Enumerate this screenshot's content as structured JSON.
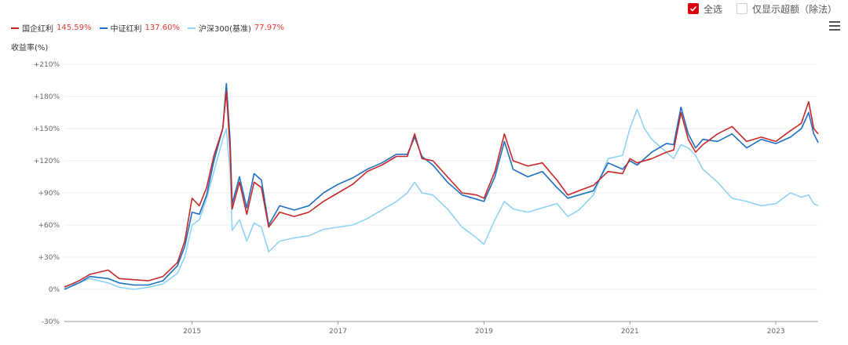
{
  "controls": {
    "select_all_label": "全选",
    "select_all_checked": true,
    "excess_label": "仅显示超额（除法）",
    "excess_checked": false,
    "menu_icon": "hamburger-menu-icon",
    "check_icon": "check-icon"
  },
  "chart_data": {
    "type": "line",
    "ylabel": "收益率(%)",
    "ylim": [
      -30,
      210
    ],
    "xlim": [
      2013.25,
      2023.58
    ],
    "y_ticks": [
      -30,
      0,
      30,
      60,
      90,
      120,
      150,
      180,
      210
    ],
    "y_tick_labels": [
      "-30%",
      "0%",
      "+30%",
      "+60%",
      "+90%",
      "+120%",
      "+150%",
      "+180%",
      "+210%"
    ],
    "x_ticks": [
      2015,
      2017,
      2019,
      2021,
      2023
    ],
    "x_tick_labels": [
      "2015",
      "2017",
      "2019",
      "2021",
      "2023"
    ],
    "grid": "horizontal",
    "legend_position": "top-left",
    "series": [
      {
        "name": "国企红利",
        "final_label": "145.59%",
        "color": "#c62828",
        "points": [
          [
            2013.25,
            2
          ],
          [
            2013.45,
            8
          ],
          [
            2013.6,
            14
          ],
          [
            2013.85,
            18
          ],
          [
            2014.0,
            10
          ],
          [
            2014.2,
            9
          ],
          [
            2014.4,
            8
          ],
          [
            2014.6,
            12
          ],
          [
            2014.8,
            25
          ],
          [
            2014.9,
            45
          ],
          [
            2015.0,
            85
          ],
          [
            2015.1,
            78
          ],
          [
            2015.2,
            95
          ],
          [
            2015.3,
            125
          ],
          [
            2015.42,
            150
          ],
          [
            2015.47,
            185
          ],
          [
            2015.52,
            130
          ],
          [
            2015.55,
            75
          ],
          [
            2015.65,
            100
          ],
          [
            2015.75,
            70
          ],
          [
            2015.85,
            100
          ],
          [
            2015.95,
            95
          ],
          [
            2016.05,
            58
          ],
          [
            2016.2,
            72
          ],
          [
            2016.4,
            68
          ],
          [
            2016.6,
            72
          ],
          [
            2016.8,
            82
          ],
          [
            2017.0,
            90
          ],
          [
            2017.2,
            98
          ],
          [
            2017.4,
            110
          ],
          [
            2017.6,
            116
          ],
          [
            2017.8,
            124
          ],
          [
            2017.95,
            124
          ],
          [
            2018.05,
            145
          ],
          [
            2018.15,
            122
          ],
          [
            2018.3,
            120
          ],
          [
            2018.5,
            105
          ],
          [
            2018.7,
            90
          ],
          [
            2018.9,
            88
          ],
          [
            2019.0,
            85
          ],
          [
            2019.15,
            110
          ],
          [
            2019.28,
            145
          ],
          [
            2019.4,
            120
          ],
          [
            2019.6,
            115
          ],
          [
            2019.8,
            118
          ],
          [
            2020.0,
            102
          ],
          [
            2020.15,
            88
          ],
          [
            2020.3,
            92
          ],
          [
            2020.5,
            97
          ],
          [
            2020.7,
            110
          ],
          [
            2020.9,
            108
          ],
          [
            2021.0,
            122
          ],
          [
            2021.1,
            118
          ],
          [
            2021.3,
            122
          ],
          [
            2021.5,
            128
          ],
          [
            2021.6,
            130
          ],
          [
            2021.7,
            165
          ],
          [
            2021.8,
            140
          ],
          [
            2021.9,
            128
          ],
          [
            2022.0,
            135
          ],
          [
            2022.2,
            145
          ],
          [
            2022.4,
            152
          ],
          [
            2022.6,
            138
          ],
          [
            2022.8,
            142
          ],
          [
            2023.0,
            138
          ],
          [
            2023.2,
            148
          ],
          [
            2023.35,
            155
          ],
          [
            2023.45,
            175
          ],
          [
            2023.52,
            150
          ],
          [
            2023.58,
            145
          ]
        ]
      },
      {
        "name": "中证红利",
        "final_label": "137.60%",
        "color": "#1e6fc2",
        "points": [
          [
            2013.25,
            0
          ],
          [
            2013.45,
            6
          ],
          [
            2013.6,
            12
          ],
          [
            2013.85,
            10
          ],
          [
            2014.0,
            6
          ],
          [
            2014.2,
            4
          ],
          [
            2014.4,
            4
          ],
          [
            2014.6,
            8
          ],
          [
            2014.8,
            22
          ],
          [
            2014.9,
            40
          ],
          [
            2015.0,
            72
          ],
          [
            2015.1,
            70
          ],
          [
            2015.2,
            88
          ],
          [
            2015.3,
            120
          ],
          [
            2015.42,
            150
          ],
          [
            2015.47,
            192
          ],
          [
            2015.52,
            140
          ],
          [
            2015.55,
            80
          ],
          [
            2015.65,
            105
          ],
          [
            2015.75,
            76
          ],
          [
            2015.85,
            108
          ],
          [
            2015.95,
            102
          ],
          [
            2016.05,
            60
          ],
          [
            2016.2,
            78
          ],
          [
            2016.4,
            74
          ],
          [
            2016.6,
            78
          ],
          [
            2016.8,
            90
          ],
          [
            2017.0,
            98
          ],
          [
            2017.2,
            104
          ],
          [
            2017.4,
            112
          ],
          [
            2017.6,
            118
          ],
          [
            2017.8,
            126
          ],
          [
            2017.95,
            126
          ],
          [
            2018.05,
            142
          ],
          [
            2018.15,
            124
          ],
          [
            2018.3,
            116
          ],
          [
            2018.5,
            100
          ],
          [
            2018.7,
            88
          ],
          [
            2018.9,
            84
          ],
          [
            2019.0,
            82
          ],
          [
            2019.15,
            105
          ],
          [
            2019.28,
            138
          ],
          [
            2019.4,
            112
          ],
          [
            2019.6,
            105
          ],
          [
            2019.8,
            110
          ],
          [
            2020.0,
            95
          ],
          [
            2020.15,
            85
          ],
          [
            2020.3,
            88
          ],
          [
            2020.5,
            92
          ],
          [
            2020.7,
            118
          ],
          [
            2020.9,
            112
          ],
          [
            2021.0,
            120
          ],
          [
            2021.1,
            116
          ],
          [
            2021.3,
            128
          ],
          [
            2021.5,
            136
          ],
          [
            2021.6,
            135
          ],
          [
            2021.7,
            170
          ],
          [
            2021.8,
            145
          ],
          [
            2021.9,
            132
          ],
          [
            2022.0,
            140
          ],
          [
            2022.2,
            138
          ],
          [
            2022.4,
            145
          ],
          [
            2022.6,
            132
          ],
          [
            2022.8,
            140
          ],
          [
            2023.0,
            136
          ],
          [
            2023.2,
            142
          ],
          [
            2023.35,
            150
          ],
          [
            2023.45,
            165
          ],
          [
            2023.52,
            145
          ],
          [
            2023.58,
            137
          ]
        ]
      },
      {
        "name": "沪深300(基准)",
        "final_label": "77.97%",
        "color": "#8fd3f4",
        "points": [
          [
            2013.25,
            3
          ],
          [
            2013.45,
            6
          ],
          [
            2013.6,
            10
          ],
          [
            2013.85,
            6
          ],
          [
            2014.0,
            2
          ],
          [
            2014.2,
            0
          ],
          [
            2014.4,
            2
          ],
          [
            2014.6,
            5
          ],
          [
            2014.8,
            15
          ],
          [
            2014.9,
            30
          ],
          [
            2015.0,
            60
          ],
          [
            2015.1,
            65
          ],
          [
            2015.2,
            85
          ],
          [
            2015.3,
            110
          ],
          [
            2015.42,
            140
          ],
          [
            2015.47,
            150
          ],
          [
            2015.52,
            110
          ],
          [
            2015.55,
            55
          ],
          [
            2015.65,
            65
          ],
          [
            2015.75,
            45
          ],
          [
            2015.85,
            62
          ],
          [
            2015.95,
            58
          ],
          [
            2016.05,
            35
          ],
          [
            2016.2,
            45
          ],
          [
            2016.4,
            48
          ],
          [
            2016.6,
            50
          ],
          [
            2016.8,
            56
          ],
          [
            2017.0,
            58
          ],
          [
            2017.2,
            60
          ],
          [
            2017.4,
            66
          ],
          [
            2017.6,
            74
          ],
          [
            2017.8,
            82
          ],
          [
            2017.95,
            90
          ],
          [
            2018.05,
            100
          ],
          [
            2018.15,
            90
          ],
          [
            2018.3,
            88
          ],
          [
            2018.5,
            75
          ],
          [
            2018.7,
            58
          ],
          [
            2018.9,
            48
          ],
          [
            2019.0,
            42
          ],
          [
            2019.15,
            65
          ],
          [
            2019.28,
            82
          ],
          [
            2019.4,
            75
          ],
          [
            2019.6,
            72
          ],
          [
            2019.8,
            76
          ],
          [
            2020.0,
            80
          ],
          [
            2020.15,
            68
          ],
          [
            2020.3,
            74
          ],
          [
            2020.5,
            88
          ],
          [
            2020.7,
            122
          ],
          [
            2020.9,
            125
          ],
          [
            2021.0,
            150
          ],
          [
            2021.1,
            168
          ],
          [
            2021.2,
            150
          ],
          [
            2021.3,
            140
          ],
          [
            2021.5,
            128
          ],
          [
            2021.6,
            122
          ],
          [
            2021.7,
            135
          ],
          [
            2021.8,
            132
          ],
          [
            2021.9,
            125
          ],
          [
            2022.0,
            112
          ],
          [
            2022.2,
            100
          ],
          [
            2022.4,
            85
          ],
          [
            2022.6,
            82
          ],
          [
            2022.8,
            78
          ],
          [
            2023.0,
            80
          ],
          [
            2023.2,
            90
          ],
          [
            2023.35,
            86
          ],
          [
            2023.45,
            88
          ],
          [
            2023.52,
            80
          ],
          [
            2023.58,
            78
          ]
        ]
      }
    ]
  }
}
